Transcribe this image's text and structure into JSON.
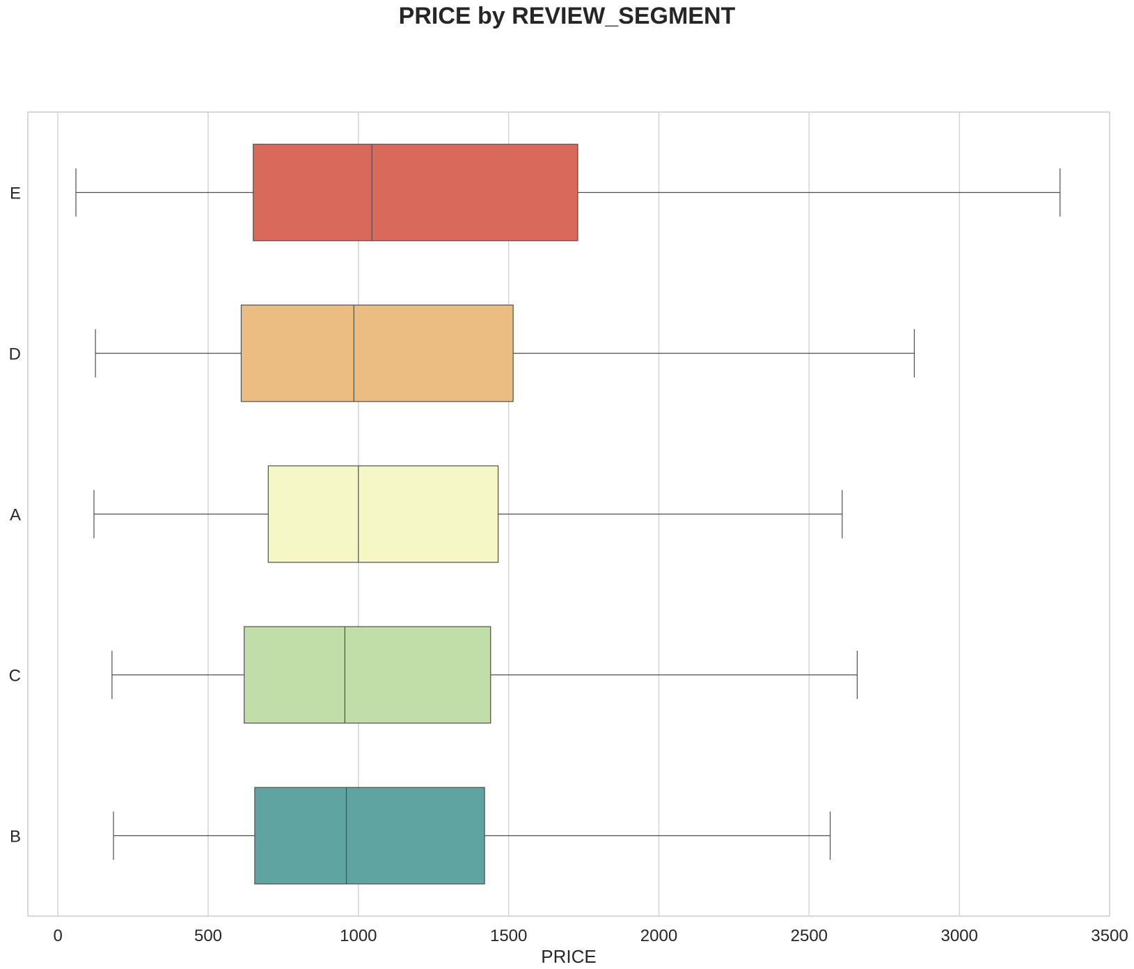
{
  "chart_data": {
    "type": "boxplot",
    "orientation": "horizontal",
    "title": "PRICE by REVIEW_SEGMENT",
    "xlabel": "PRICE",
    "ylabel": "",
    "xlim": [
      -100,
      3500
    ],
    "xticks": [
      0,
      500,
      1000,
      1500,
      2000,
      2500,
      3000,
      3500
    ],
    "grid": "vertical",
    "categories": [
      "E",
      "D",
      "A",
      "C",
      "B"
    ],
    "boxes": [
      {
        "category": "E",
        "whisker_low": 60,
        "q1": 650,
        "median": 1045,
        "q3": 1730,
        "whisker_high": 3335,
        "color": "#d96a5b"
      },
      {
        "category": "D",
        "whisker_low": 125,
        "q1": 610,
        "median": 985,
        "q3": 1515,
        "whisker_high": 2850,
        "color": "#ebbd82"
      },
      {
        "category": "A",
        "whisker_low": 120,
        "q1": 700,
        "median": 1000,
        "q3": 1465,
        "whisker_high": 2610,
        "color": "#f6f7c6"
      },
      {
        "category": "C",
        "whisker_low": 180,
        "q1": 620,
        "median": 955,
        "q3": 1440,
        "whisker_high": 2660,
        "color": "#c2dea8"
      },
      {
        "category": "B",
        "whisker_low": 185,
        "q1": 655,
        "median": 960,
        "q3": 1420,
        "whisker_high": 2570,
        "color": "#5fa4a0"
      }
    ]
  }
}
